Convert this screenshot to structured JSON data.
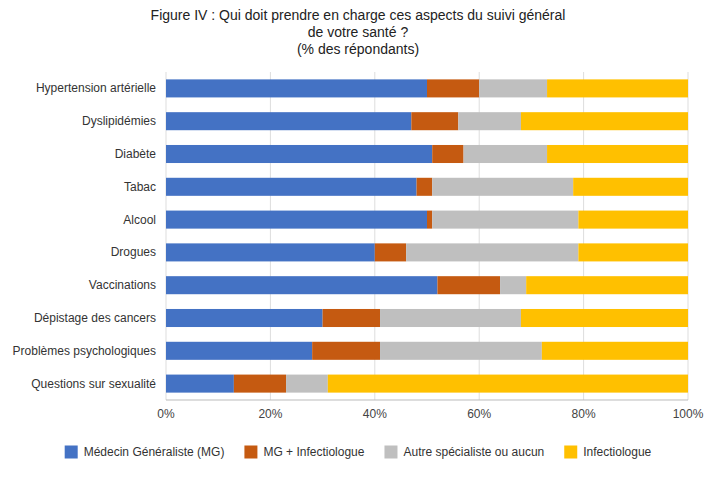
{
  "chart_data": {
    "type": "bar",
    "orientation": "horizontal",
    "stacked": true,
    "title": "Figure IV : Qui doit prendre en charge ces aspects du suivi général\nde votre santé ?\n(% des répondants)",
    "categories": [
      "Hypertension artérielle",
      "Dyslipidémies",
      "Diabète",
      "Tabac",
      "Alcool",
      "Drogues",
      "Vaccinations",
      "Dépistage des cancers",
      "Problèmes psychologiques",
      "Questions sur sexualité"
    ],
    "series": [
      {
        "name": "Médecin Généraliste (MG)",
        "color": "#4472C4",
        "values": [
          50,
          47,
          51,
          48,
          50,
          40,
          52,
          30,
          28,
          13
        ]
      },
      {
        "name": "MG + Infectiologue",
        "color": "#C55A11",
        "values": [
          10,
          9,
          6,
          3,
          1,
          6,
          12,
          11,
          13,
          10
        ]
      },
      {
        "name": "Autre spécialiste ou aucun",
        "color": "#BFBFBF",
        "values": [
          13,
          12,
          16,
          27,
          28,
          33,
          5,
          27,
          31,
          8
        ]
      },
      {
        "name": "Infectiologue",
        "color": "#FFC000",
        "values": [
          27,
          32,
          27,
          22,
          21,
          21,
          31,
          32,
          28,
          69
        ]
      }
    ],
    "xlim": [
      0,
      100
    ],
    "xticks": [
      {
        "value": 0,
        "label": "0%"
      },
      {
        "value": 20,
        "label": "20%"
      },
      {
        "value": 40,
        "label": "40%"
      },
      {
        "value": 60,
        "label": "60%"
      },
      {
        "value": 80,
        "label": "80%"
      },
      {
        "value": 100,
        "label": "100%"
      }
    ],
    "grid": true,
    "legend": "bottom"
  }
}
